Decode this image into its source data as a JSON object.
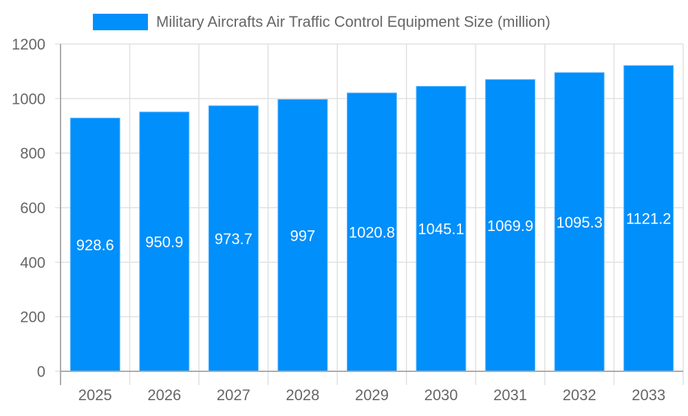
{
  "chart_data": {
    "type": "bar",
    "title": "",
    "xlabel": "",
    "ylabel": "",
    "categories": [
      "2025",
      "2026",
      "2027",
      "2028",
      "2029",
      "2030",
      "2031",
      "2032",
      "2033"
    ],
    "series": [
      {
        "name": "Military Aircrafts Air Traffic Control Equipment Size (million)",
        "values": [
          928.6,
          950.9,
          973.7,
          997,
          1020.8,
          1045.1,
          1069.9,
          1095.3,
          1121.2
        ],
        "color": "#008ffb"
      }
    ],
    "ylim": [
      0,
      1200
    ],
    "yticks": [
      0,
      200,
      400,
      600,
      800,
      1000,
      1200
    ],
    "grid": true,
    "legend": "top-center",
    "data_labels": true
  }
}
